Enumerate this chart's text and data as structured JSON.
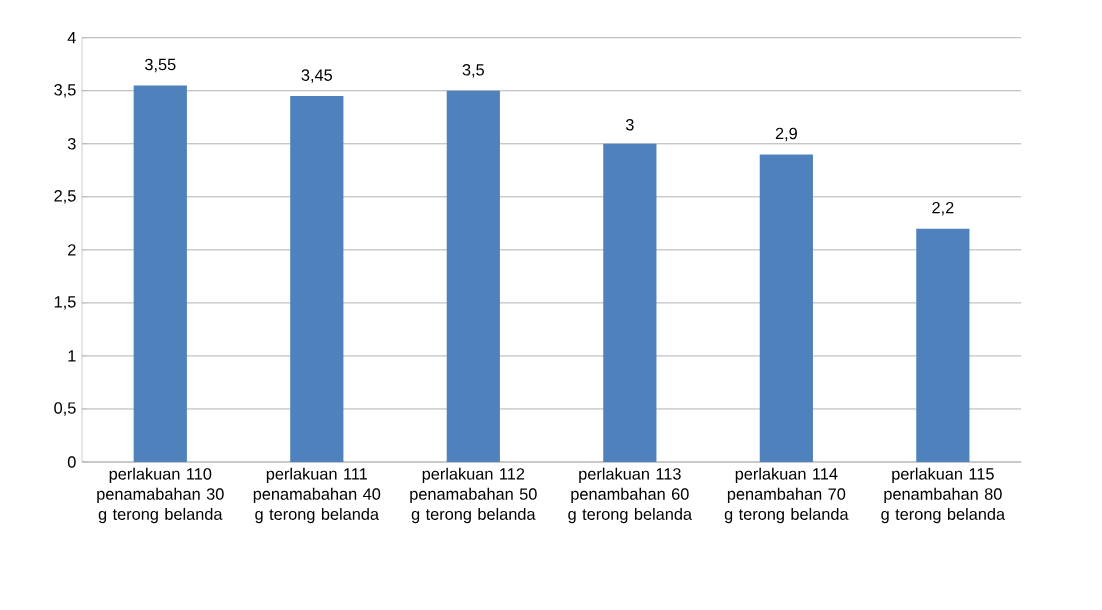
{
  "chart_data": {
    "type": "bar",
    "categories": [
      "perlakuan 110 penamabahan 30 g terong belanda",
      "perlakuan 111 penamabahan 40 g terong belanda",
      "perlakuan 112 penamabahan 50 g terong belanda",
      "perlakuan 113 penambahan 60 g terong belanda",
      "perlakuan 114 penambahan 70 g terong belanda",
      "perlakuan 115 penambahan 80 g terong belanda"
    ],
    "values": [
      3.55,
      3.45,
      3.5,
      3,
      2.9,
      2.2
    ],
    "value_labels": [
      "3,55",
      "3,45",
      "3,5",
      "3",
      "2,9",
      "2,2"
    ],
    "color": "#4f81bd",
    "ylim": [
      0,
      4
    ],
    "yticks": [
      0,
      {
        "value": 0.5,
        "label": "0,5"
      },
      1,
      {
        "value": 1.5,
        "label": "1,5"
      },
      2,
      {
        "value": 2.5,
        "label": "2,5"
      },
      3,
      {
        "value": 3.5,
        "label": "3,5"
      },
      4
    ],
    "grid": "y"
  }
}
